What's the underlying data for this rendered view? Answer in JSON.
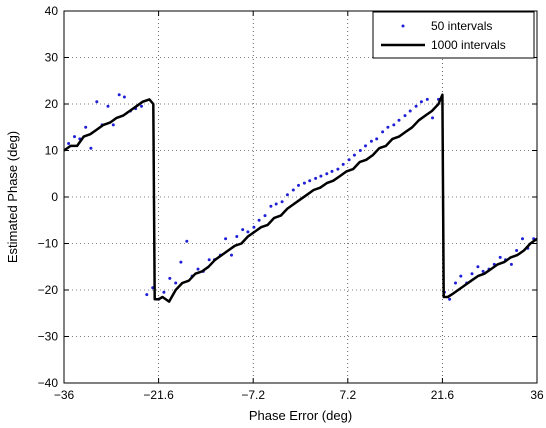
{
  "chart_data": {
    "type": "line",
    "xlabel": "Phase Error (deg)",
    "ylabel": "Estimated Phase (deg)",
    "xlim": [
      -36,
      36
    ],
    "ylim": [
      -40,
      40
    ],
    "xticks": [
      -36,
      -21.6,
      -7.2,
      7.2,
      21.6,
      36
    ],
    "xtick_labels": [
      "−36",
      "−21.6",
      "−7.2",
      "7.2",
      "21.6",
      "36"
    ],
    "yticks": [
      -40,
      -30,
      -20,
      -10,
      0,
      10,
      20,
      30,
      40
    ],
    "ytick_labels": [
      "−40",
      "−30",
      "−20",
      "−10",
      "0",
      "10",
      "20",
      "30",
      "40"
    ],
    "grid": true,
    "legend_position": "top-right",
    "series": [
      {
        "name": "50 intervals",
        "style": "dots",
        "color": "#1f1fd6",
        "x": [
          -35.3,
          -34.4,
          -33.6,
          -32.7,
          -31.9,
          -31.0,
          -30.2,
          -29.3,
          -28.5,
          -27.6,
          -26.8,
          -25.9,
          -25.1,
          -24.2,
          -23.4,
          -22.5,
          -21.6,
          -20.8,
          -19.9,
          -19.0,
          -18.2,
          -17.3,
          -16.5,
          -15.6,
          -14.8,
          -13.9,
          -13.1,
          -12.2,
          -11.4,
          -10.5,
          -9.7,
          -8.8,
          -8.0,
          -7.1,
          -6.3,
          -5.4,
          -4.5,
          -3.7,
          -2.8,
          -2.0,
          -1.1,
          -0.3,
          0.6,
          1.4,
          2.3,
          3.1,
          4.0,
          4.8,
          5.7,
          6.5,
          7.4,
          8.2,
          9.1,
          9.9,
          10.8,
          11.6,
          12.5,
          13.3,
          14.2,
          15.0,
          15.9,
          16.7,
          17.6,
          18.4,
          19.3,
          20.1,
          21.0,
          21.9,
          22.7,
          23.6,
          24.4,
          25.3,
          26.1,
          27.0,
          27.8,
          28.7,
          29.5,
          30.4,
          31.2,
          32.1,
          32.9,
          33.8,
          34.6,
          35.5
        ],
        "y": [
          11.5,
          13.0,
          12.5,
          15.0,
          10.5,
          20.5,
          15.5,
          19.5,
          15.5,
          22.0,
          21.5,
          18.5,
          19.0,
          19.5,
          -21.0,
          -19.5,
          -22.0,
          -20.5,
          -17.5,
          -18.5,
          -14.0,
          -9.5,
          -17.0,
          -15.5,
          -16.0,
          -13.5,
          -13.5,
          -12.5,
          -9.0,
          -12.5,
          -8.5,
          -7.0,
          -7.5,
          -6.5,
          -5.0,
          -4.0,
          -2.0,
          -1.5,
          -1.0,
          0.5,
          1.5,
          2.5,
          3.0,
          3.5,
          4.0,
          4.5,
          5.0,
          5.5,
          6.0,
          7.0,
          8.0,
          9.0,
          10.0,
          11.0,
          12.0,
          12.5,
          14.0,
          15.0,
          15.5,
          16.5,
          17.5,
          18.5,
          19.5,
          20.5,
          21.0,
          17.0,
          21.0,
          -20.5,
          -22.0,
          -18.5,
          -17.0,
          -18.5,
          -16.5,
          -15.0,
          -16.0,
          -15.5,
          -14.5,
          -13.0,
          -13.5,
          -14.5,
          -11.5,
          -9.0,
          -11.0,
          -9.0
        ]
      },
      {
        "name": "1000 intervals",
        "style": "line",
        "color": "#000000",
        "x": [
          -36.0,
          -35.0,
          -34.0,
          -33.0,
          -32.0,
          -31.0,
          -30.0,
          -29.0,
          -28.0,
          -27.0,
          -26.0,
          -25.0,
          -24.0,
          -23.0,
          -22.4,
          -22.2,
          -21.6,
          -21.0,
          -20.0,
          -19.0,
          -18.0,
          -17.0,
          -16.0,
          -15.0,
          -14.0,
          -13.0,
          -12.0,
          -11.0,
          -10.0,
          -9.0,
          -8.0,
          -7.0,
          -6.0,
          -5.0,
          -4.0,
          -3.0,
          -2.0,
          -1.0,
          0.0,
          1.0,
          2.0,
          3.0,
          4.0,
          5.0,
          6.0,
          7.0,
          8.0,
          9.0,
          10.0,
          11.0,
          12.0,
          13.0,
          14.0,
          15.0,
          16.0,
          17.0,
          18.0,
          19.0,
          20.0,
          21.0,
          21.6,
          21.8,
          22.4,
          23.0,
          24.0,
          25.0,
          26.0,
          27.0,
          28.0,
          29.0,
          30.0,
          31.0,
          32.0,
          33.0,
          34.0,
          35.0,
          36.0
        ],
        "y": [
          10.0,
          11.0,
          11.0,
          13.0,
          13.5,
          14.5,
          15.5,
          16.0,
          17.0,
          17.5,
          18.5,
          19.5,
          20.5,
          21.0,
          20.0,
          -22.0,
          -22.0,
          -21.5,
          -22.5,
          -20.0,
          -18.5,
          -18.0,
          -16.5,
          -16.0,
          -15.0,
          -13.5,
          -12.5,
          -11.5,
          -10.5,
          -10.0,
          -8.5,
          -7.5,
          -6.5,
          -6.0,
          -4.5,
          -4.0,
          -2.5,
          -1.5,
          -0.5,
          0.5,
          1.5,
          2.0,
          3.0,
          3.5,
          4.5,
          5.5,
          6.0,
          7.5,
          8.0,
          9.0,
          10.5,
          11.0,
          12.5,
          13.0,
          14.0,
          15.0,
          16.5,
          17.5,
          18.5,
          20.0,
          22.0,
          -21.5,
          -21.5,
          -21.0,
          -20.0,
          -19.0,
          -18.0,
          -17.0,
          -16.5,
          -15.5,
          -14.5,
          -14.0,
          -13.0,
          -12.5,
          -11.5,
          -10.0,
          -9.0
        ]
      }
    ]
  }
}
